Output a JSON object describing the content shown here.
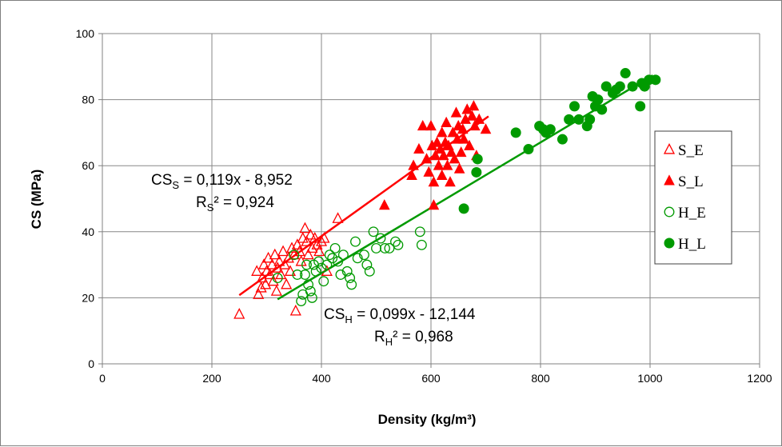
{
  "chart_data": {
    "type": "scatter",
    "xlabel": "Density (kg/m³)",
    "ylabel": "CS (MPa)",
    "xlim": [
      0,
      1200
    ],
    "ylim": [
      0,
      100
    ],
    "xticks": [
      0,
      200,
      400,
      600,
      800,
      1000,
      1200
    ],
    "yticks": [
      0,
      20,
      40,
      60,
      80,
      100
    ],
    "grid": true,
    "legend_position": "right",
    "colors": {
      "red": "#ff0000",
      "green": "#009a00",
      "grid": "#878787",
      "axis": "#808080"
    },
    "series": [
      {
        "name": "S_E",
        "marker": "triangle-open",
        "color": "#ff0000",
        "points": [
          [
            250,
            15
          ],
          [
            282,
            28
          ],
          [
            285,
            21
          ],
          [
            290,
            23
          ],
          [
            292,
            26
          ],
          [
            295,
            30
          ],
          [
            298,
            24
          ],
          [
            300,
            28
          ],
          [
            303,
            32
          ],
          [
            306,
            27
          ],
          [
            310,
            30
          ],
          [
            312,
            25
          ],
          [
            315,
            33
          ],
          [
            318,
            22
          ],
          [
            320,
            29
          ],
          [
            323,
            31
          ],
          [
            326,
            27
          ],
          [
            330,
            34
          ],
          [
            333,
            30
          ],
          [
            336,
            24
          ],
          [
            340,
            32
          ],
          [
            343,
            28
          ],
          [
            346,
            35
          ],
          [
            350,
            33
          ],
          [
            353,
            16
          ],
          [
            356,
            36
          ],
          [
            360,
            34
          ],
          [
            363,
            31
          ],
          [
            366,
            38
          ],
          [
            370,
            41
          ],
          [
            373,
            37
          ],
          [
            376,
            33
          ],
          [
            380,
            39
          ],
          [
            383,
            35
          ],
          [
            388,
            38
          ],
          [
            392,
            36
          ],
          [
            396,
            34
          ],
          [
            400,
            37
          ],
          [
            405,
            38
          ],
          [
            410,
            28
          ],
          [
            430,
            44
          ]
        ]
      },
      {
        "name": "S_L",
        "marker": "triangle-filled",
        "color": "#ff0000",
        "points": [
          [
            515,
            48
          ],
          [
            565,
            57
          ],
          [
            568,
            60
          ],
          [
            578,
            65
          ],
          [
            585,
            72
          ],
          [
            592,
            62
          ],
          [
            596,
            58
          ],
          [
            600,
            72
          ],
          [
            602,
            66
          ],
          [
            605,
            55
          ],
          [
            605,
            48
          ],
          [
            608,
            63
          ],
          [
            611,
            67
          ],
          [
            614,
            60
          ],
          [
            617,
            65
          ],
          [
            620,
            70
          ],
          [
            620,
            57
          ],
          [
            623,
            63
          ],
          [
            626,
            67
          ],
          [
            628,
            73
          ],
          [
            630,
            60
          ],
          [
            632,
            66
          ],
          [
            635,
            55
          ],
          [
            637,
            64
          ],
          [
            640,
            70
          ],
          [
            643,
            62
          ],
          [
            646,
            76
          ],
          [
            648,
            68
          ],
          [
            650,
            72
          ],
          [
            652,
            59
          ],
          [
            655,
            64
          ],
          [
            658,
            71
          ],
          [
            660,
            68
          ],
          [
            663,
            74
          ],
          [
            666,
            77
          ],
          [
            670,
            66
          ],
          [
            675,
            75
          ],
          [
            678,
            78
          ],
          [
            680,
            72
          ],
          [
            683,
            63
          ],
          [
            688,
            74
          ],
          [
            700,
            71
          ]
        ]
      },
      {
        "name": "H_E",
        "marker": "circle-open",
        "color": "#009a00",
        "points": [
          [
            320,
            26
          ],
          [
            350,
            33
          ],
          [
            356,
            27
          ],
          [
            363,
            19
          ],
          [
            366,
            21
          ],
          [
            370,
            27
          ],
          [
            373,
            30
          ],
          [
            376,
            24
          ],
          [
            380,
            22
          ],
          [
            383,
            20
          ],
          [
            386,
            30
          ],
          [
            390,
            28
          ],
          [
            395,
            31
          ],
          [
            400,
            29
          ],
          [
            404,
            25
          ],
          [
            410,
            30
          ],
          [
            415,
            33
          ],
          [
            420,
            32
          ],
          [
            425,
            35
          ],
          [
            430,
            31
          ],
          [
            435,
            27
          ],
          [
            440,
            33
          ],
          [
            447,
            28
          ],
          [
            452,
            26
          ],
          [
            455,
            24
          ],
          [
            462,
            37
          ],
          [
            466,
            32
          ],
          [
            478,
            33
          ],
          [
            483,
            30
          ],
          [
            488,
            28
          ],
          [
            495,
            40
          ],
          [
            500,
            35
          ],
          [
            508,
            38
          ],
          [
            516,
            35
          ],
          [
            524,
            35
          ],
          [
            535,
            37
          ],
          [
            540,
            36
          ],
          [
            580,
            40
          ],
          [
            583,
            36
          ]
        ]
      },
      {
        "name": "H_L",
        "marker": "circle-filled",
        "color": "#009a00",
        "points": [
          [
            660,
            47
          ],
          [
            683,
            58
          ],
          [
            685,
            62
          ],
          [
            755,
            70
          ],
          [
            778,
            65
          ],
          [
            798,
            72
          ],
          [
            805,
            71
          ],
          [
            810,
            70
          ],
          [
            818,
            71
          ],
          [
            840,
            68
          ],
          [
            852,
            74
          ],
          [
            862,
            78
          ],
          [
            870,
            74
          ],
          [
            885,
            72
          ],
          [
            890,
            74
          ],
          [
            895,
            81
          ],
          [
            900,
            78
          ],
          [
            905,
            80
          ],
          [
            912,
            77
          ],
          [
            920,
            84
          ],
          [
            932,
            82
          ],
          [
            938,
            83
          ],
          [
            945,
            84
          ],
          [
            955,
            88
          ],
          [
            968,
            84
          ],
          [
            982,
            78
          ],
          [
            985,
            85
          ],
          [
            990,
            84
          ],
          [
            998,
            86
          ],
          [
            1010,
            86
          ]
        ]
      }
    ],
    "fits": [
      {
        "series": "S",
        "slope": 0.119,
        "intercept": -8.952,
        "x_range": [
          250,
          705
        ],
        "color": "#ff0000"
      },
      {
        "series": "H",
        "slope": 0.099,
        "intercept": -12.144,
        "x_range": [
          320,
          1005
        ],
        "color": "#009a00"
      }
    ],
    "annotations": {
      "s_eq": {
        "base": "CS",
        "sub": "S",
        "rest": " = 0,119x - 8,952"
      },
      "s_r2": {
        "base": "R",
        "sub": "S",
        "rest": "² = 0,924"
      },
      "h_eq": {
        "base": "CS",
        "sub": "H",
        "rest": " = 0,099x - 12,144"
      },
      "h_r2": {
        "base": "R",
        "sub": "H",
        "rest": "² = 0,968"
      }
    }
  }
}
